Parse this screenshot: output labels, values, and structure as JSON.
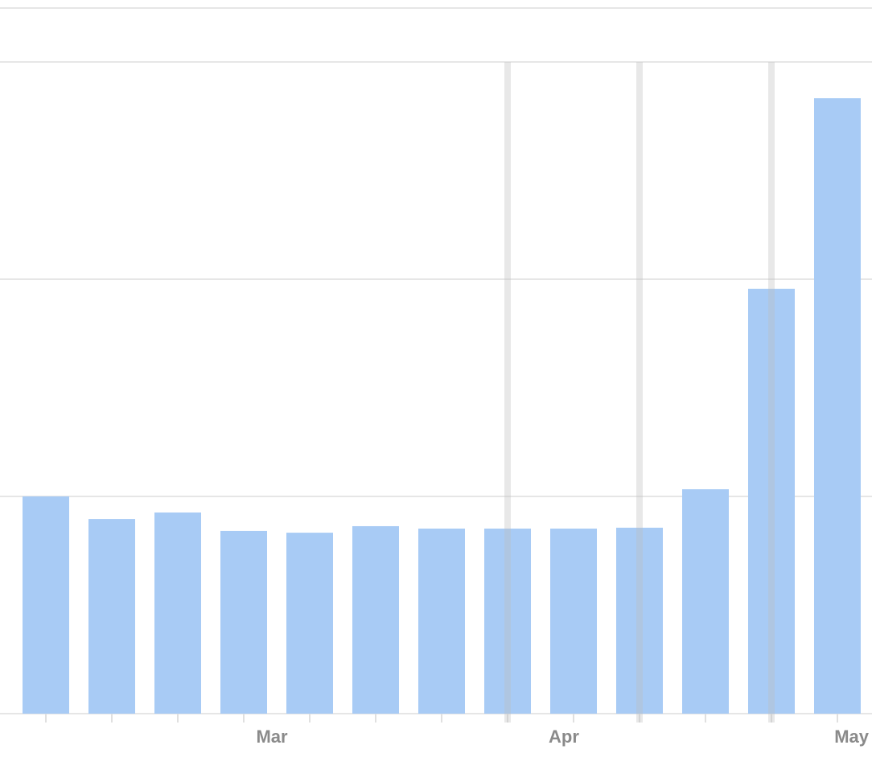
{
  "chart_data": {
    "type": "bar",
    "categories": [
      null,
      null,
      null,
      "Mar",
      null,
      null,
      null,
      null,
      "Apr",
      null,
      null,
      null,
      "May"
    ],
    "values": [
      1.0,
      0.896,
      0.926,
      0.841,
      0.833,
      0.863,
      0.852,
      0.852,
      0.852,
      0.856,
      1.033,
      1.956,
      2.833
    ],
    "color": "#a8cbf5",
    "ylim": [
      0,
      3.25
    ],
    "yticks": [
      0,
      1,
      2,
      3
    ],
    "grid": true,
    "highlight_indices": [
      7,
      9,
      11
    ]
  }
}
